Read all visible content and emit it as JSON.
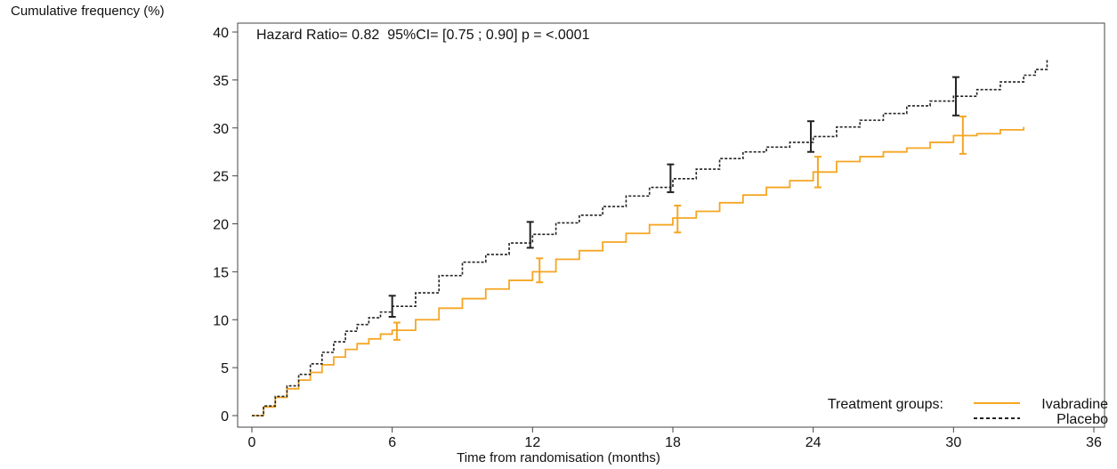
{
  "chart_data": {
    "type": "line",
    "ylabel": "Cumulative frequency (%)",
    "xlabel": "Time from randomisation (months)",
    "annotation": "Hazard Ratio= 0.82  95%CI= [0.75 ; 0.90] p = <.0001",
    "xlim": [
      0,
      36
    ],
    "ylim": [
      0,
      40
    ],
    "xticks": [
      0,
      6,
      12,
      18,
      24,
      30,
      36
    ],
    "yticks": [
      0,
      5,
      10,
      15,
      20,
      25,
      30,
      35,
      40
    ],
    "grid": false,
    "legend": {
      "title": "Treatment groups:",
      "placement": "bottom-right"
    },
    "series": [
      {
        "name": "Ivabradine",
        "color": "#f5a623",
        "style": "solid",
        "x": [
          0,
          0.5,
          1,
          1.5,
          2,
          2.5,
          3,
          3.5,
          4,
          4.5,
          5,
          5.5,
          6,
          7,
          8,
          9,
          10,
          11,
          12,
          13,
          14,
          15,
          16,
          17,
          18,
          19,
          20,
          21,
          22,
          23,
          24,
          25,
          26,
          27,
          28,
          29,
          30,
          31,
          32,
          33
        ],
        "y": [
          0,
          0.9,
          1.9,
          2.8,
          3.7,
          4.5,
          5.3,
          6.1,
          6.9,
          7.5,
          8.0,
          8.5,
          8.9,
          10.0,
          11.2,
          12.2,
          13.2,
          14.1,
          15.0,
          16.3,
          17.2,
          18.1,
          19.0,
          19.9,
          20.6,
          21.3,
          22.2,
          23.0,
          23.8,
          24.5,
          25.4,
          26.5,
          27.0,
          27.5,
          27.9,
          28.5,
          29.2,
          29.4,
          29.8,
          30.1
        ],
        "error_bars": [
          {
            "x": 6.2,
            "y": 8.8,
            "low": 7.9,
            "high": 9.7
          },
          {
            "x": 12.3,
            "y": 15.1,
            "low": 13.9,
            "high": 16.4
          },
          {
            "x": 18.2,
            "y": 20.5,
            "low": 19.1,
            "high": 21.9
          },
          {
            "x": 24.2,
            "y": 25.4,
            "low": 23.8,
            "high": 27.0
          },
          {
            "x": 30.4,
            "y": 29.2,
            "low": 27.3,
            "high": 31.2
          }
        ]
      },
      {
        "name": "Placebo",
        "color": "#222222",
        "style": "dashed",
        "x": [
          0,
          0.5,
          1,
          1.5,
          2,
          2.5,
          3,
          3.5,
          4,
          4.5,
          5,
          5.5,
          6,
          7,
          8,
          9,
          10,
          11,
          12,
          13,
          14,
          15,
          16,
          17,
          18,
          19,
          20,
          21,
          22,
          23,
          24,
          25,
          26,
          27,
          28,
          29,
          30,
          31,
          32,
          33,
          33.5,
          34
        ],
        "y": [
          0,
          1.0,
          2.0,
          3.1,
          4.3,
          5.4,
          6.6,
          7.7,
          8.8,
          9.5,
          10.2,
          10.8,
          11.4,
          12.8,
          14.6,
          16.0,
          16.8,
          18.0,
          18.9,
          20.1,
          20.9,
          21.8,
          22.9,
          23.8,
          24.7,
          25.7,
          26.8,
          27.5,
          28.0,
          28.5,
          29.1,
          30.1,
          30.8,
          31.5,
          32.3,
          32.8,
          33.3,
          34.0,
          34.8,
          35.5,
          36.1,
          37.2
        ],
        "error_bars": [
          {
            "x": 6.0,
            "y": 11.4,
            "low": 10.3,
            "high": 12.5
          },
          {
            "x": 11.9,
            "y": 18.8,
            "low": 17.5,
            "high": 20.2
          },
          {
            "x": 17.9,
            "y": 24.7,
            "low": 23.3,
            "high": 26.2
          },
          {
            "x": 23.9,
            "y": 29.1,
            "low": 27.5,
            "high": 30.7
          },
          {
            "x": 30.1,
            "y": 33.3,
            "low": 31.3,
            "high": 35.3
          }
        ]
      }
    ]
  }
}
